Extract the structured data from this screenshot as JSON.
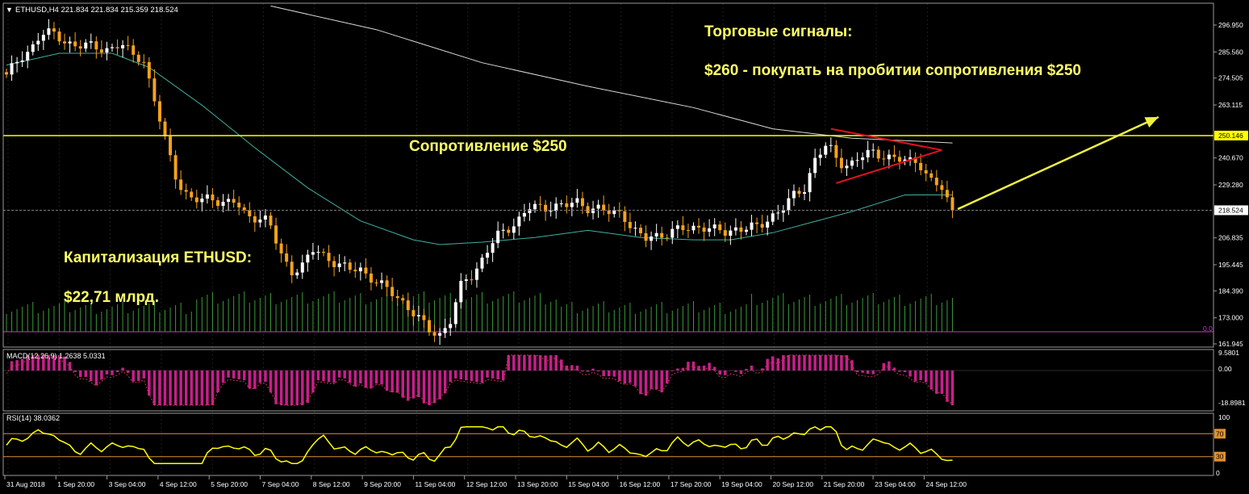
{
  "colors": {
    "background": "#000000",
    "grid": "#1e1e1e",
    "axis": "#9a9a9a",
    "bull": "#ffffff",
    "bear": "#f5a21b",
    "ma_fast": "#3fb0a0",
    "ma_slow": "#d8d8d8",
    "resistance": "#ffff00",
    "triangle": "#e0101e",
    "arrow": "#f0f040",
    "volume": "#3a9a3a",
    "macd_hist": "#c81e8c",
    "macd_signal": "#c83a3a",
    "rsi_line": "#ffff00",
    "rsi_levels": "#e09030",
    "annotation": "#ffff66",
    "zero_line": "#c040c0"
  },
  "header": {
    "symbol_info": "ETHUSD,H4  221.834 221.834 215.359 218.524",
    "zero_label": "0.0"
  },
  "main_axis": {
    "labels": [
      "296.950",
      "285.560",
      "274.505",
      "263.115",
      "250.146",
      "240.670",
      "229.280",
      "218.524",
      "206.835",
      "195.445",
      "184.390",
      "173.000",
      "161.945"
    ],
    "current_price": "218.524",
    "resistance_price": "250.146"
  },
  "annotations": {
    "signals_title": "Торговые сигналы:",
    "signal_line": "$260 -  покупать на пробитии сопротивления $250",
    "resistance_label": "Сопротивление $250",
    "cap_title": "Капитализация ETHUSD:",
    "cap_value": "$22,71 млрд."
  },
  "macd": {
    "title": "MACD(12,26,9) 1.2638 5.0331",
    "labels": [
      "9.5801",
      "0.00",
      "-18.8981"
    ]
  },
  "rsi": {
    "title": "RSI(14) 38.0362",
    "labels": [
      "100",
      "70",
      "30",
      "0"
    ]
  },
  "time_axis": [
    "31 Aug 2018",
    "1 Sep 20:00",
    "3 Sep 04:00",
    "4 Sep 12:00",
    "5 Sep 20:00",
    "7 Sep 04:00",
    "8 Sep 12:00",
    "9 Sep 20:00",
    "11 Sep 04:00",
    "12 Sep 12:00",
    "13 Sep 20:00",
    "15 Sep 04:00",
    "16 Sep 12:00",
    "17 Sep 20:00",
    "19 Sep 04:00",
    "20 Sep 12:00",
    "21 Sep 20:00",
    "23 Sep 04:00",
    "24 Sep 12:00"
  ],
  "chart_data": {
    "type": "candlestick",
    "price_ylim": [
      161.945,
      296.95
    ],
    "close_path": [
      276,
      281,
      286,
      294,
      293,
      290,
      289,
      288,
      287,
      287,
      289,
      284,
      283,
      265,
      246,
      231,
      224,
      222,
      224,
      222,
      222,
      216,
      216,
      214,
      200,
      193,
      195,
      202,
      199,
      196,
      193,
      194,
      190,
      186,
      183,
      179,
      173,
      168,
      166,
      172,
      188,
      192,
      200,
      207,
      211,
      215,
      220,
      219,
      221,
      220,
      222,
      220,
      219,
      217,
      218,
      210,
      206,
      208,
      209,
      210,
      211,
      212,
      210,
      209,
      211,
      211,
      211,
      216,
      219,
      224,
      228,
      241,
      246,
      239,
      238,
      241,
      243,
      242,
      240,
      239,
      240,
      231,
      228,
      218
    ],
    "ma_fast": [
      {
        "bar": 0,
        "price": 280
      },
      {
        "bar": 10,
        "price": 285
      },
      {
        "bar": 20,
        "price": 285
      },
      {
        "bar": 27,
        "price": 279
      },
      {
        "bar": 37,
        "price": 263
      },
      {
        "bar": 47,
        "price": 245
      },
      {
        "bar": 57,
        "price": 228
      },
      {
        "bar": 67,
        "price": 214
      },
      {
        "bar": 77,
        "price": 206
      },
      {
        "bar": 82,
        "price": 204
      },
      {
        "bar": 90,
        "price": 205
      },
      {
        "bar": 100,
        "price": 207
      },
      {
        "bar": 110,
        "price": 210
      },
      {
        "bar": 120,
        "price": 207
      },
      {
        "bar": 130,
        "price": 206
      },
      {
        "bar": 137,
        "price": 206
      },
      {
        "bar": 145,
        "price": 209
      },
      {
        "bar": 160,
        "price": 218
      },
      {
        "bar": 170,
        "price": 225
      },
      {
        "bar": 179,
        "price": 225
      }
    ],
    "ma_slow": [
      {
        "bar": 50,
        "price": 305
      },
      {
        "bar": 70,
        "price": 295
      },
      {
        "bar": 90,
        "price": 281
      },
      {
        "bar": 110,
        "price": 271
      },
      {
        "bar": 130,
        "price": 262
      },
      {
        "bar": 145,
        "price": 253
      },
      {
        "bar": 160,
        "price": 249
      },
      {
        "bar": 170,
        "price": 248
      },
      {
        "bar": 179,
        "price": 247
      }
    ],
    "rsi_levels": [
      70,
      30
    ],
    "macd_zero": 0.0
  }
}
